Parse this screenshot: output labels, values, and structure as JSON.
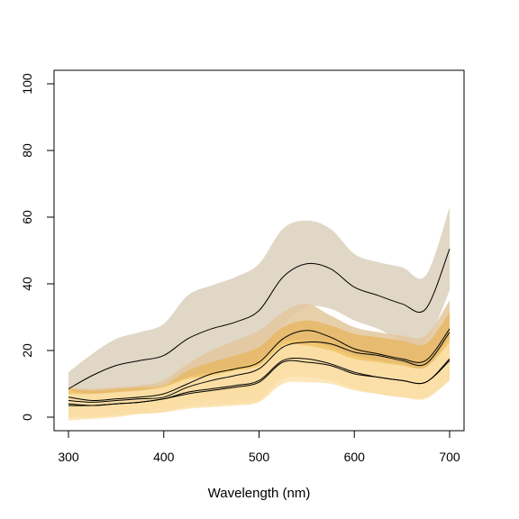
{
  "chart_data": {
    "type": "line",
    "title": "",
    "xlabel": "Wavelength (nm)",
    "ylabel": "",
    "xlim": [
      300,
      700
    ],
    "ylim": [
      0,
      100
    ],
    "x_ticks": [
      300,
      400,
      500,
      600,
      700
    ],
    "y_ticks": [
      0,
      20,
      40,
      60,
      80,
      100
    ],
    "x": [
      300,
      325,
      350,
      375,
      400,
      425,
      450,
      475,
      500,
      525,
      550,
      575,
      600,
      625,
      650,
      675,
      700
    ],
    "grid": false,
    "legend": "none",
    "series": [
      {
        "color": "#dcd0bc",
        "mean": [
          8.5,
          12.5,
          15.5,
          17,
          18.5,
          23.5,
          26.5,
          28.5,
          32,
          42,
          46,
          44.5,
          39,
          36.5,
          34,
          32.5,
          50.5
        ],
        "upper": [
          13.5,
          19,
          23.5,
          25.5,
          28,
          36.5,
          39.5,
          42,
          46,
          56.5,
          59,
          56.5,
          49,
          46.5,
          45,
          42.5,
          63
        ],
        "lower": [
          3.5,
          6,
          7.5,
          8.5,
          9,
          10.5,
          13.5,
          15,
          18,
          27.5,
          33,
          32.5,
          29,
          26.5,
          23,
          22.5,
          38
        ]
      },
      {
        "color": "#e3c79e",
        "mean": [
          6,
          5,
          5.5,
          6,
          7,
          10,
          13,
          14.5,
          16.5,
          23.5,
          26,
          24,
          20.5,
          19,
          17.5,
          17,
          26.5
        ],
        "upper": [
          9,
          8.5,
          9,
          9.5,
          11,
          16,
          20,
          23,
          26,
          31.5,
          34,
          30.5,
          27,
          25.5,
          24.5,
          24.5,
          35
        ],
        "lower": [
          3,
          2,
          2,
          2.5,
          3.5,
          5,
          6.5,
          7,
          8,
          15.5,
          18,
          17.5,
          14,
          12.5,
          10.5,
          10.5,
          18
        ]
      },
      {
        "color": "#e6b965",
        "mean": [
          5,
          4.5,
          5,
          5.5,
          6,
          9,
          11,
          12.5,
          14.5,
          21,
          22.5,
          22,
          19.5,
          18.5,
          17,
          16,
          25.5
        ],
        "upper": [
          8.5,
          8,
          8.5,
          9,
          9.5,
          14,
          16.5,
          18.5,
          21,
          27,
          29,
          27.5,
          25,
          24,
          23,
          22,
          31.5
        ],
        "lower": [
          1.5,
          1,
          1.5,
          2,
          2.5,
          4,
          5.5,
          6.5,
          8,
          15,
          16,
          16.5,
          14,
          13,
          11,
          10,
          19.5
        ]
      },
      {
        "color": "#f2c96f",
        "mean": [
          4,
          3.5,
          4,
          4.5,
          5.5,
          7.5,
          8.5,
          9.5,
          11,
          17,
          17.5,
          16,
          13.5,
          12,
          11,
          10.5,
          17.5
        ],
        "upper": [
          8,
          7,
          7.5,
          8,
          9.5,
          12,
          13.5,
          15,
          17,
          22.5,
          23,
          21,
          18.5,
          17,
          16,
          15,
          24
        ],
        "lower": [
          0,
          0,
          0.5,
          1,
          1.5,
          3,
          3.5,
          4,
          5,
          11.5,
          12,
          11,
          8.5,
          7,
          6,
          6,
          11
        ]
      },
      {
        "color": "#fbe2ae",
        "mean": [
          3.5,
          3.5,
          4,
          4.5,
          5.5,
          7,
          8,
          9,
          10.5,
          16.5,
          16.5,
          15.5,
          13,
          12,
          11,
          10.5,
          17
        ],
        "upper": [
          7,
          7,
          7.5,
          8,
          9,
          11.5,
          12.5,
          14,
          15.5,
          21.5,
          21.5,
          20,
          17.5,
          16.5,
          15.5,
          15,
          22.5
        ],
        "lower": [
          -1,
          -0.5,
          0,
          1,
          1.5,
          2.5,
          3,
          3.5,
          4.5,
          10,
          10.5,
          10,
          8,
          7,
          6,
          5.5,
          11
        ]
      }
    ]
  }
}
